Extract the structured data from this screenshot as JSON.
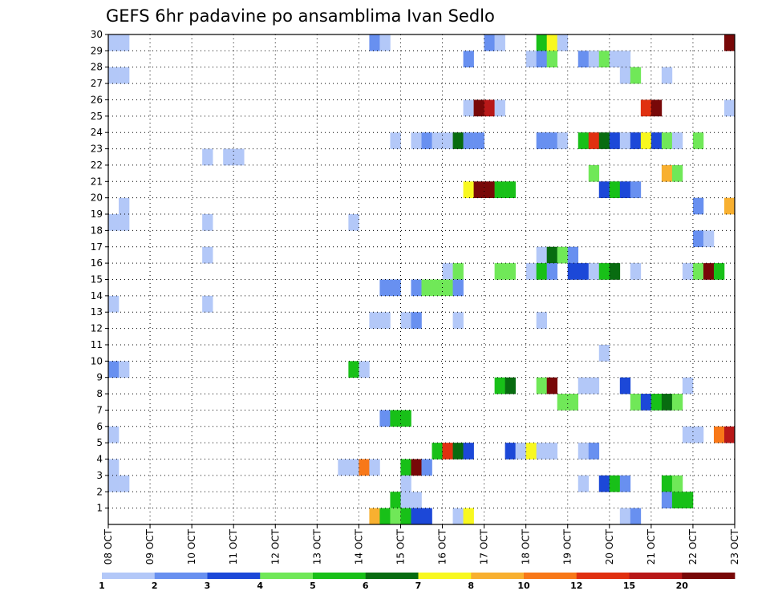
{
  "chart_data": {
    "type": "heatmap",
    "title": "GEFS 6hr padavine po ansamblima Ivan Sedlo",
    "xlabel": "",
    "ylabel": "",
    "x_tick_labels": [
      "08 OCT",
      "09 OCT",
      "10 OCT",
      "11 OCT",
      "12 OCT",
      "13 OCT",
      "14 OCT",
      "15 OCT",
      "16 OCT",
      "17 OCT",
      "18 OCT",
      "19 OCT",
      "20 OCT",
      "21 OCT",
      "22 OCT",
      "23 OCT"
    ],
    "x_unit": "6-hour step from 08 OCT 00Z",
    "xlim": [
      0,
      60
    ],
    "y_tick_labels": [
      "1",
      "2",
      "3",
      "4",
      "5",
      "6",
      "7",
      "8",
      "9",
      "10",
      "11",
      "12",
      "13",
      "14",
      "15",
      "16",
      "17",
      "18",
      "19",
      "20",
      "21",
      "22",
      "23",
      "24",
      "25",
      "26",
      "27",
      "28",
      "29",
      "30"
    ],
    "ylim": [
      0,
      30
    ],
    "grid": true,
    "colorbar": {
      "labels": [
        "1",
        "2",
        "3",
        "4",
        "5",
        "6",
        "7",
        "8",
        "10",
        "12",
        "15",
        "20"
      ],
      "colors": [
        "#b3c8f8",
        "#6890f0",
        "#1c48d8",
        "#70e858",
        "#18c018",
        "#086c10",
        "#f8f820",
        "#f8b030",
        "#f87818",
        "#e03010",
        "#b81818",
        "#780808"
      ]
    },
    "cells": [
      [
        0,
        30,
        0
      ],
      [
        1,
        30,
        0
      ],
      [
        25,
        30,
        1
      ],
      [
        26,
        30,
        0
      ],
      [
        36,
        30,
        1
      ],
      [
        37,
        30,
        0
      ],
      [
        41,
        30,
        4
      ],
      [
        42,
        30,
        6
      ],
      [
        43,
        30,
        0
      ],
      [
        59,
        30,
        11
      ],
      [
        34,
        29,
        1
      ],
      [
        40,
        29,
        0
      ],
      [
        41,
        29,
        1
      ],
      [
        42,
        29,
        3
      ],
      [
        45,
        29,
        1
      ],
      [
        46,
        29,
        0
      ],
      [
        47,
        29,
        3
      ],
      [
        48,
        29,
        0
      ],
      [
        49,
        29,
        0
      ],
      [
        0,
        28,
        0
      ],
      [
        1,
        28,
        0
      ],
      [
        49,
        28,
        0
      ],
      [
        50,
        28,
        3
      ],
      [
        53,
        28,
        0
      ],
      [
        34,
        26,
        0
      ],
      [
        35,
        26,
        11
      ],
      [
        36,
        26,
        10
      ],
      [
        37,
        26,
        0
      ],
      [
        51,
        26,
        9
      ],
      [
        52,
        26,
        11
      ],
      [
        59,
        26,
        0
      ],
      [
        27,
        24,
        0
      ],
      [
        29,
        24,
        0
      ],
      [
        30,
        24,
        1
      ],
      [
        31,
        24,
        0
      ],
      [
        32,
        24,
        0
      ],
      [
        33,
        24,
        5
      ],
      [
        34,
        24,
        1
      ],
      [
        35,
        24,
        1
      ],
      [
        41,
        24,
        1
      ],
      [
        42,
        24,
        1
      ],
      [
        43,
        24,
        0
      ],
      [
        45,
        24,
        4
      ],
      [
        46,
        24,
        9
      ],
      [
        47,
        24,
        5
      ],
      [
        48,
        24,
        2
      ],
      [
        49,
        24,
        0
      ],
      [
        50,
        24,
        2
      ],
      [
        51,
        24,
        6
      ],
      [
        52,
        24,
        2
      ],
      [
        53,
        24,
        3
      ],
      [
        54,
        24,
        0
      ],
      [
        56,
        24,
        3
      ],
      [
        9,
        23,
        0
      ],
      [
        11,
        23,
        0
      ],
      [
        12,
        23,
        0
      ],
      [
        46,
        22,
        3
      ],
      [
        53,
        22,
        7
      ],
      [
        54,
        22,
        3
      ],
      [
        34,
        21,
        6
      ],
      [
        35,
        21,
        11
      ],
      [
        36,
        21,
        11
      ],
      [
        37,
        21,
        4
      ],
      [
        38,
        21,
        4
      ],
      [
        47,
        21,
        2
      ],
      [
        48,
        21,
        4
      ],
      [
        49,
        21,
        2
      ],
      [
        50,
        21,
        1
      ],
      [
        1,
        20,
        0
      ],
      [
        56,
        20,
        1
      ],
      [
        59,
        20,
        7
      ],
      [
        0,
        19,
        0
      ],
      [
        1,
        19,
        0
      ],
      [
        9,
        19,
        0
      ],
      [
        23,
        19,
        0
      ],
      [
        56,
        18,
        1
      ],
      [
        57,
        18,
        0
      ],
      [
        41,
        17,
        0
      ],
      [
        42,
        17,
        5
      ],
      [
        43,
        17,
        3
      ],
      [
        44,
        17,
        1
      ],
      [
        9,
        17,
        0
      ],
      [
        32,
        16,
        0
      ],
      [
        33,
        16,
        3
      ],
      [
        37,
        16,
        3
      ],
      [
        38,
        16,
        3
      ],
      [
        40,
        16,
        0
      ],
      [
        41,
        16,
        4
      ],
      [
        42,
        16,
        1
      ],
      [
        44,
        16,
        2
      ],
      [
        45,
        16,
        2
      ],
      [
        46,
        16,
        0
      ],
      [
        47,
        16,
        4
      ],
      [
        48,
        16,
        5
      ],
      [
        50,
        16,
        0
      ],
      [
        55,
        16,
        0
      ],
      [
        56,
        16,
        3
      ],
      [
        57,
        16,
        11
      ],
      [
        58,
        16,
        4
      ],
      [
        26,
        15,
        1
      ],
      [
        27,
        15,
        1
      ],
      [
        29,
        15,
        1
      ],
      [
        30,
        15,
        3
      ],
      [
        31,
        15,
        3
      ],
      [
        32,
        15,
        3
      ],
      [
        33,
        15,
        1
      ],
      [
        0,
        14,
        0
      ],
      [
        9,
        14,
        0
      ],
      [
        25,
        13,
        0
      ],
      [
        26,
        13,
        0
      ],
      [
        28,
        13,
        0
      ],
      [
        29,
        13,
        1
      ],
      [
        33,
        13,
        0
      ],
      [
        41,
        13,
        0
      ],
      [
        47,
        11,
        0
      ],
      [
        0,
        10,
        1
      ],
      [
        1,
        10,
        0
      ],
      [
        23,
        10,
        4
      ],
      [
        24,
        10,
        0
      ],
      [
        37,
        9,
        4
      ],
      [
        38,
        9,
        5
      ],
      [
        41,
        9,
        3
      ],
      [
        42,
        9,
        11
      ],
      [
        45,
        9,
        0
      ],
      [
        46,
        9,
        0
      ],
      [
        49,
        9,
        2
      ],
      [
        55,
        9,
        0
      ],
      [
        43,
        8,
        3
      ],
      [
        44,
        8,
        3
      ],
      [
        50,
        8,
        3
      ],
      [
        51,
        8,
        2
      ],
      [
        52,
        8,
        4
      ],
      [
        53,
        8,
        5
      ],
      [
        54,
        8,
        3
      ],
      [
        26,
        7,
        1
      ],
      [
        27,
        7,
        4
      ],
      [
        28,
        7,
        4
      ],
      [
        0,
        6,
        0
      ],
      [
        55,
        6,
        0
      ],
      [
        56,
        6,
        0
      ],
      [
        58,
        6,
        8
      ],
      [
        59,
        6,
        10
      ],
      [
        31,
        5,
        4
      ],
      [
        32,
        5,
        9
      ],
      [
        33,
        5,
        5
      ],
      [
        34,
        5,
        2
      ],
      [
        38,
        5,
        2
      ],
      [
        39,
        5,
        0
      ],
      [
        40,
        5,
        6
      ],
      [
        41,
        5,
        0
      ],
      [
        42,
        5,
        0
      ],
      [
        45,
        5,
        0
      ],
      [
        46,
        5,
        1
      ],
      [
        0,
        4,
        0
      ],
      [
        22,
        4,
        0
      ],
      [
        23,
        4,
        0
      ],
      [
        24,
        4,
        8
      ],
      [
        25,
        4,
        0
      ],
      [
        28,
        4,
        4
      ],
      [
        29,
        4,
        11
      ],
      [
        30,
        4,
        1
      ],
      [
        0,
        3,
        0
      ],
      [
        1,
        3,
        0
      ],
      [
        28,
        3,
        0
      ],
      [
        45,
        3,
        0
      ],
      [
        47,
        3,
        2
      ],
      [
        48,
        3,
        4
      ],
      [
        49,
        3,
        1
      ],
      [
        53,
        3,
        4
      ],
      [
        54,
        3,
        3
      ],
      [
        27,
        2,
        4
      ],
      [
        28,
        2,
        0
      ],
      [
        29,
        2,
        0
      ],
      [
        53,
        2,
        1
      ],
      [
        54,
        2,
        4
      ],
      [
        55,
        2,
        4
      ],
      [
        25,
        1,
        7
      ],
      [
        26,
        1,
        4
      ],
      [
        27,
        1,
        3
      ],
      [
        28,
        1,
        4
      ],
      [
        29,
        1,
        2
      ],
      [
        30,
        1,
        2
      ],
      [
        33,
        1,
        0
      ],
      [
        34,
        1,
        6
      ],
      [
        49,
        1,
        0
      ],
      [
        50,
        1,
        1
      ]
    ]
  }
}
